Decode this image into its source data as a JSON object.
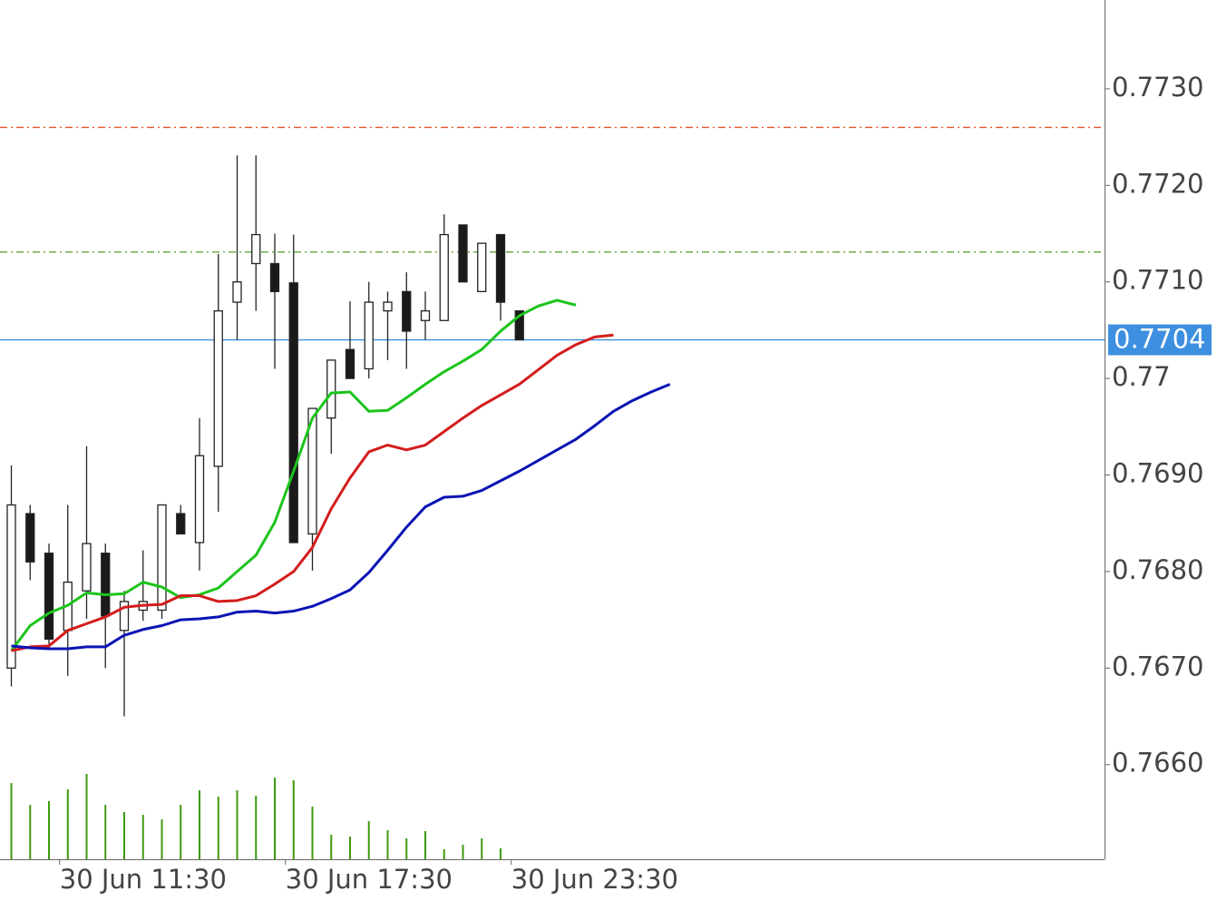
{
  "chart_data": {
    "type": "candlestick",
    "categories": [
      null,
      null,
      null,
      "30 Jun 11:30",
      null,
      null,
      null,
      null,
      null,
      null,
      null,
      null,
      null,
      null,
      null,
      "30 Jun 17:30",
      null,
      null,
      null,
      null,
      null,
      null,
      null,
      null,
      null,
      null,
      null,
      "30 Jun 23:30",
      null,
      null,
      null,
      null,
      null,
      null,
      null,
      null
    ],
    "open": [
      0.767,
      0.7686,
      0.76819,
      0.76739,
      0.7678,
      0.76819,
      0.76739,
      0.7676,
      0.7676,
      0.7686,
      0.7683,
      0.76909,
      0.77079,
      0.77119,
      0.77119,
      0.77099,
      0.76839,
      0.76959,
      0.7703,
      0.7701,
      0.7707,
      0.7709,
      0.7706,
      0.7706,
      0.77159,
      0.7709,
      0.77149,
      0.7707,
      null,
      null,
      null,
      null,
      null,
      null,
      null,
      null
    ],
    "high": [
      0.7691,
      0.76869,
      0.76829,
      0.76869,
      0.7693,
      0.76829,
      0.7678,
      0.76822,
      0.76869,
      0.76869,
      0.76959,
      0.77129,
      0.77231,
      0.77231,
      0.7715,
      0.77149,
      0.76969,
      0.77019,
      0.7708,
      0.771,
      0.7709,
      0.7711,
      0.7709,
      0.7717,
      0.77159,
      0.7714,
      0.77149,
      0.7707,
      null,
      null,
      null,
      null,
      null,
      null,
      null,
      null
    ],
    "low": [
      0.76681,
      0.76791,
      0.76719,
      0.76692,
      0.76751,
      0.767,
      0.7665,
      0.76749,
      0.76751,
      0.76839,
      0.76801,
      0.76862,
      0.7704,
      0.7707,
      0.7701,
      0.7683,
      0.76801,
      0.76922,
      0.77,
      0.77,
      0.77019,
      0.7701,
      0.7704,
      0.7706,
      0.771,
      0.7709,
      0.7706,
      0.7704,
      null,
      null,
      null,
      null,
      null,
      null,
      null,
      null
    ],
    "close": [
      0.76869,
      0.7681,
      0.7673,
      0.76789,
      0.76829,
      0.76754,
      0.76769,
      0.76769,
      0.76869,
      0.76839,
      0.7692,
      0.7707,
      0.771,
      0.77149,
      0.7709,
      0.7683,
      0.76969,
      0.77019,
      0.77,
      0.77079,
      0.77079,
      0.77049,
      0.7707,
      0.77149,
      0.771,
      0.7714,
      0.77079,
      0.7704,
      null,
      null,
      null,
      null,
      null,
      null,
      null,
      null
    ],
    "volume": [
      84,
      60,
      64,
      77,
      94,
      60,
      52,
      49,
      44,
      60,
      76,
      69,
      76,
      70,
      90,
      87,
      58,
      27,
      25,
      42,
      32,
      23,
      31,
      11,
      16,
      23,
      12,
      null,
      null,
      null,
      null,
      null,
      null,
      null,
      null,
      null
    ],
    "volume_color": "#3c9a0c",
    "up_color": "#ffffff",
    "down_color": "#1a1a1a",
    "series": [
      {
        "color": "#1cc41c",
        "values": [
          0.76718,
          0.76744,
          0.76757,
          0.76765,
          0.76778,
          0.76776,
          0.76777,
          0.76789,
          0.76784,
          0.76773,
          0.76776,
          0.76783,
          0.768,
          0.76817,
          0.76851,
          0.76904,
          0.76959,
          0.76985,
          0.76986,
          0.76966,
          0.76967,
          0.7698,
          0.76994,
          0.77007,
          0.77018,
          0.7703,
          0.77049,
          0.77065,
          0.77075,
          0.77081,
          0.77076,
          null,
          null,
          null,
          null,
          null
        ]
      },
      {
        "color": "#d41c1c",
        "values": [
          0.76718,
          0.76722,
          0.76723,
          0.76739,
          0.76746,
          0.76753,
          0.76763,
          0.76765,
          0.76766,
          0.76775,
          0.76775,
          0.76769,
          0.7677,
          0.76775,
          0.76787,
          0.768,
          0.76825,
          0.76865,
          0.76897,
          0.76924,
          0.76931,
          0.76926,
          0.76931,
          0.76945,
          0.76959,
          0.76972,
          0.76983,
          0.76994,
          0.77009,
          0.77024,
          0.77035,
          0.77043,
          0.77045,
          null,
          null,
          null
        ]
      },
      {
        "color": "#0a14b4",
        "values": [
          0.76723,
          0.76721,
          0.7672,
          0.7672,
          0.76722,
          0.76722,
          0.76734,
          0.7674,
          0.76744,
          0.7675,
          0.76751,
          0.76753,
          0.76758,
          0.76759,
          0.76757,
          0.76759,
          0.76764,
          0.76772,
          0.76781,
          0.76799,
          0.76822,
          0.76846,
          0.76867,
          0.76877,
          0.76878,
          0.76884,
          0.76894,
          0.76904,
          0.76915,
          0.76926,
          0.76937,
          0.76951,
          0.76966,
          0.76977,
          0.76986,
          0.76994
        ]
      }
    ],
    "levels": [
      {
        "value": 0.7726,
        "color": "#e8542a"
      },
      {
        "value": 0.77131,
        "color": "#5a9a2a"
      }
    ],
    "last_price": {
      "value": 0.7704,
      "color": "#3d8fe0"
    },
    "ylim": [
      0.76502,
      0.77392
    ],
    "yticks": [
      {
        "value": 0.773,
        "label": "0.7730"
      },
      {
        "value": 0.772,
        "label": "0.7720"
      },
      {
        "value": 0.771,
        "label": "0.7710"
      },
      0.77,
      {
        "value": 0.769,
        "label": "0.7690"
      },
      {
        "value": 0.768,
        "label": "0.7680"
      },
      {
        "value": 0.767,
        "label": "0.7670"
      },
      {
        "value": 0.766,
        "label": "0.7660"
      }
    ]
  }
}
